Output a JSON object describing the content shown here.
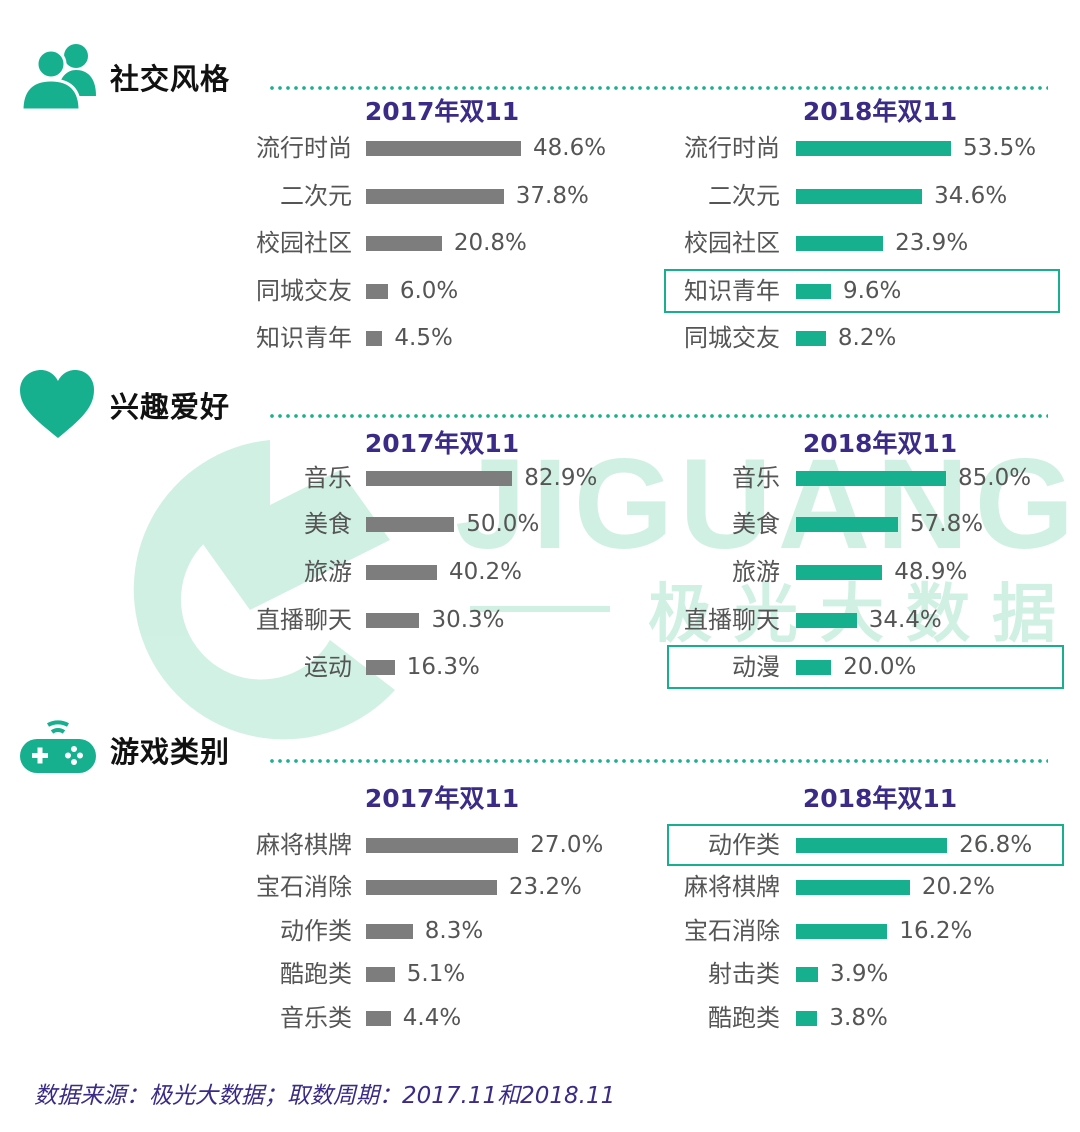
{
  "watermark": {
    "brand": "JIGUANG",
    "brand_cn": "极光大数据"
  },
  "colors": {
    "y2017": "#7d7d7d",
    "y2018": "#16b08f",
    "title": "#3b2b86"
  },
  "source": "数据来源：极光大数据；取数周期：2017.11和2018.11",
  "chart_data": [
    {
      "type": "bar",
      "orientation": "horizontal",
      "title": "社交风格",
      "icon": "users-icon",
      "x_max": 100,
      "panels": [
        {
          "name": "2017年双11",
          "categories": [
            "流行时尚",
            "二次元",
            "校园社区",
            "同城交友",
            "知识青年"
          ],
          "values": [
            48.6,
            37.8,
            20.8,
            6.0,
            4.5
          ],
          "labels": [
            "48.6%",
            "37.8%",
            "20.8%",
            "6.0%",
            "4.5%"
          ],
          "highlight": null
        },
        {
          "name": "2018年双11",
          "categories": [
            "流行时尚",
            "二次元",
            "校园社区",
            "知识青年",
            "同城交友"
          ],
          "values": [
            53.5,
            34.6,
            23.9,
            9.6,
            8.2
          ],
          "labels": [
            "53.5%",
            "34.6%",
            "23.9%",
            "9.6%",
            "8.2%"
          ],
          "highlight": 3
        }
      ]
    },
    {
      "type": "bar",
      "orientation": "horizontal",
      "title": "兴趣爱好",
      "icon": "heart-icon",
      "x_max": 100,
      "panels": [
        {
          "name": "2017年双11",
          "categories": [
            "音乐",
            "美食",
            "旅游",
            "直播聊天",
            "运动"
          ],
          "values": [
            82.9,
            50.0,
            40.2,
            30.3,
            16.3
          ],
          "labels": [
            "82.9%",
            "50.0%",
            "40.2%",
            "30.3%",
            "16.3%"
          ],
          "highlight": null
        },
        {
          "name": "2018年双11",
          "categories": [
            "音乐",
            "美食",
            "旅游",
            "直播聊天",
            "动漫"
          ],
          "values": [
            85.0,
            57.8,
            48.9,
            34.4,
            20.0
          ],
          "labels": [
            "85.0%",
            "57.8%",
            "48.9%",
            "34.4%",
            "20.0%"
          ],
          "highlight": 4
        }
      ]
    },
    {
      "type": "bar",
      "orientation": "horizontal",
      "title": "游戏类别",
      "icon": "gamepad-icon",
      "x_max": 30,
      "panels": [
        {
          "name": "2017年双11",
          "categories": [
            "麻将棋牌",
            "宝石消除",
            "动作类",
            "酷跑类",
            "音乐类"
          ],
          "values": [
            27.0,
            23.2,
            8.3,
            5.1,
            4.4
          ],
          "labels": [
            "27.0%",
            "23.2%",
            "8.3%",
            "5.1%",
            "4.4%"
          ],
          "highlight": null
        },
        {
          "name": "2018年双11",
          "categories": [
            "动作类",
            "麻将棋牌",
            "宝石消除",
            "射击类",
            "酷跑类"
          ],
          "values": [
            26.8,
            20.2,
            16.2,
            3.9,
            3.8
          ],
          "labels": [
            "26.8%",
            "20.2%",
            "16.2%",
            "3.9%",
            "3.8%"
          ],
          "highlight": 0
        }
      ]
    }
  ]
}
